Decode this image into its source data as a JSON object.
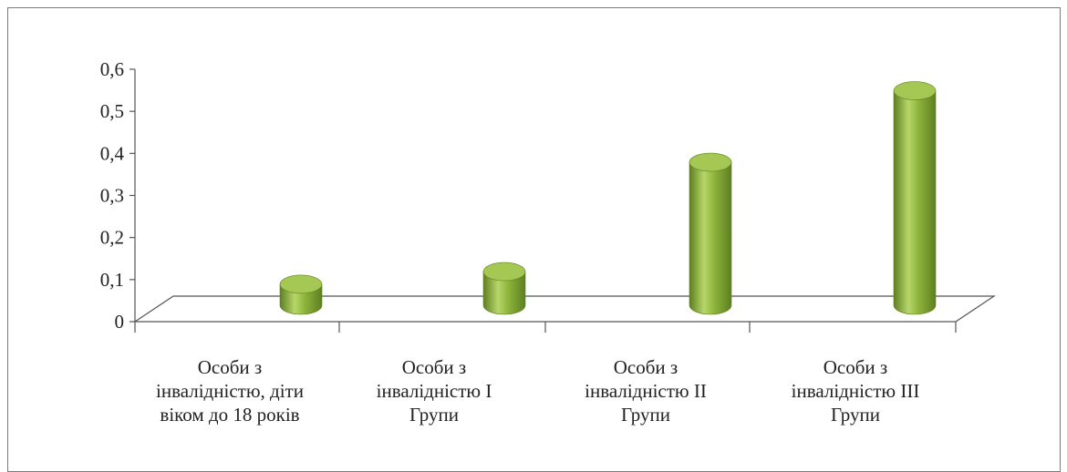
{
  "chart_data": {
    "type": "bar",
    "style": "3d-cylinder",
    "categories": [
      [
        "Особи з",
        "інвалідністю, діти",
        "віком до 18 років"
      ],
      [
        "Особи з",
        "інвалідністю І",
        "Групи"
      ],
      [
        "Особи з",
        "інвалідністю ІІ",
        "Групи"
      ],
      [
        "Особи з",
        "інвалідністю ІІІ",
        "Групи"
      ]
    ],
    "series": [
      {
        "values": [
          0.05,
          0.08,
          0.34,
          0.51
        ]
      }
    ],
    "yticks": [
      "0",
      "0,1",
      "0,2",
      "0,3",
      "0,4",
      "0,5",
      "0,6"
    ],
    "ylim": [
      0,
      0.6
    ],
    "title": "",
    "xlabel": "",
    "ylabel": "",
    "grid": false,
    "legend": "none",
    "colors": {
      "bar_light": "#b7d66a",
      "bar_mid": "#8cb33a",
      "bar_dark": "#5e7f22",
      "bar_top": "#a4c853",
      "axis": "#555555",
      "frame": "#7a7a7a"
    }
  }
}
